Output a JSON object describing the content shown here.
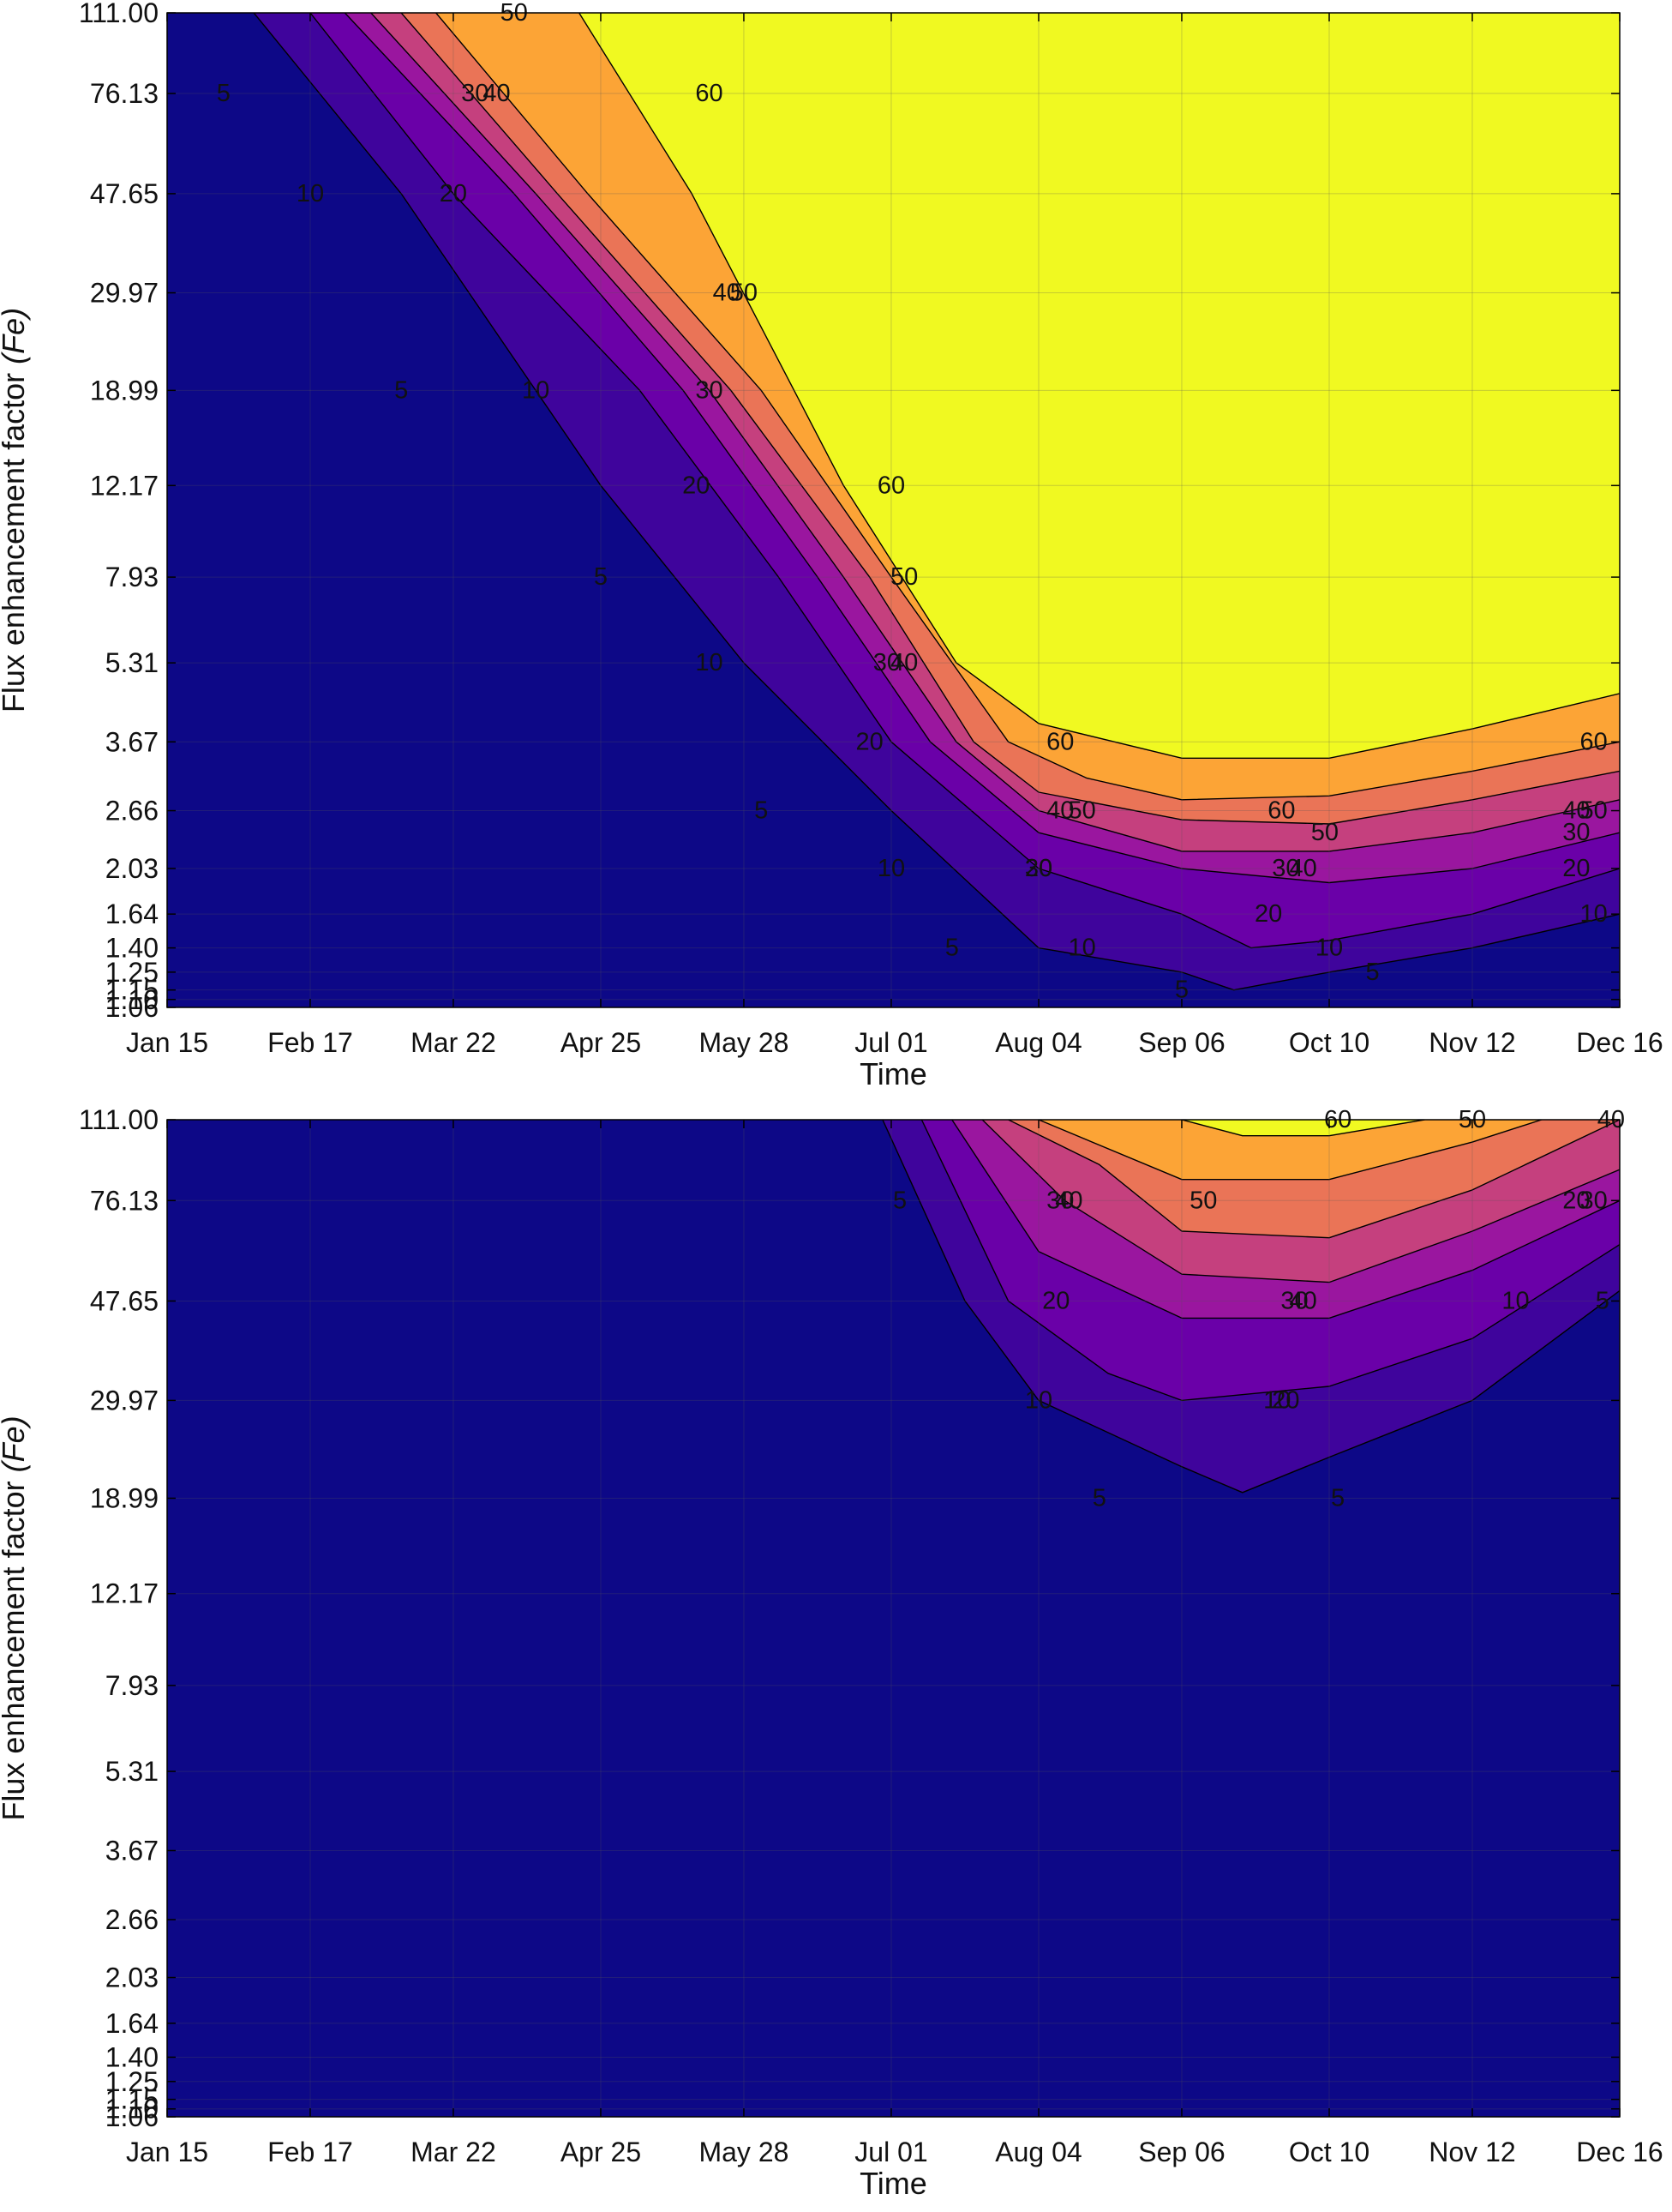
{
  "chart_data": [
    {
      "type": "contour",
      "title": "",
      "xlabel": "Time",
      "ylabel": "Flux enhancement factor",
      "ylabel_symbol": "(Fe)",
      "x_ticks": [
        "Jan 15",
        "Feb 17",
        "Mar 22",
        "Apr 25",
        "May 28",
        "Jul 01",
        "Aug 04",
        "Sep 06",
        "Oct 10",
        "Nov 12",
        "Dec 16"
      ],
      "y_ticks": [
        "1.06",
        "1.10",
        "1.15",
        "1.25",
        "1.40",
        "1.64",
        "2.03",
        "2.66",
        "3.67",
        "5.31",
        "7.93",
        "12.17",
        "18.99",
        "29.97",
        "47.65",
        "76.13",
        "111.00"
      ],
      "y_scale": "categorical-log",
      "levels": [
        5,
        10,
        20,
        30,
        40,
        50,
        60
      ],
      "colors": [
        "#0d0887",
        "#3f049c",
        "#6a00a8",
        "#9a169f",
        "#c5407e",
        "#ea7457",
        "#fca436",
        "#f0f921"
      ],
      "grid": true,
      "contours": [
        {
          "level": 5,
          "points": [
            [
              "Feb 04",
              "111.00"
            ],
            [
              "Mar 10",
              "47.65"
            ],
            [
              "Apr 25",
              "12.17"
            ],
            [
              "May 28",
              "5.31"
            ],
            [
              "Jul 01",
              "2.66"
            ],
            [
              "Aug 04",
              "1.40"
            ],
            [
              "Sep 06",
              "1.25"
            ],
            [
              "Sep 18",
              "1.15"
            ],
            [
              "Oct 10",
              "1.25"
            ],
            [
              "Nov 12",
              "1.40"
            ],
            [
              "Dec 16",
              "1.64"
            ]
          ]
        },
        {
          "level": 10,
          "points": [
            [
              "Feb 17",
              "111.00"
            ],
            [
              "Mar 22",
              "47.65"
            ],
            [
              "May 04",
              "18.99"
            ],
            [
              "Jun 05",
              "7.93"
            ],
            [
              "Jul 01",
              "3.67"
            ],
            [
              "Aug 04",
              "2.03"
            ],
            [
              "Sep 06",
              "1.64"
            ],
            [
              "Sep 22",
              "1.40"
            ],
            [
              "Oct 10",
              "1.45"
            ],
            [
              "Nov 12",
              "1.64"
            ],
            [
              "Dec 16",
              "2.03"
            ]
          ]
        },
        {
          "level": 20,
          "points": [
            [
              "Feb 25",
              "111.00"
            ],
            [
              "Apr 05",
              "47.65"
            ],
            [
              "May 14",
              "18.99"
            ],
            [
              "Jun 14",
              "7.93"
            ],
            [
              "Jul 10",
              "3.67"
            ],
            [
              "Aug 04",
              "2.40"
            ],
            [
              "Sep 06",
              "2.03"
            ],
            [
              "Oct 10",
              "1.90"
            ],
            [
              "Nov 12",
              "2.03"
            ],
            [
              "Dec 16",
              "2.40"
            ]
          ]
        },
        {
          "level": 30,
          "points": [
            [
              "Mar 03",
              "111.00"
            ],
            [
              "Apr 10",
              "47.65"
            ],
            [
              "May 20",
              "18.99"
            ],
            [
              "Jun 20",
              "7.93"
            ],
            [
              "Jul 16",
              "3.67"
            ],
            [
              "Aug 04",
              "2.66"
            ],
            [
              "Sep 06",
              "2.20"
            ],
            [
              "Oct 10",
              "2.20"
            ],
            [
              "Nov 12",
              "2.40"
            ],
            [
              "Dec 16",
              "2.80"
            ]
          ]
        },
        {
          "level": 40,
          "points": [
            [
              "Mar 10",
              "111.00"
            ],
            [
              "Apr 15",
              "47.65"
            ],
            [
              "May 25",
              "18.99"
            ],
            [
              "Jun 26",
              "7.93"
            ],
            [
              "Jul 20",
              "3.67"
            ],
            [
              "Aug 04",
              "2.90"
            ],
            [
              "Sep 06",
              "2.55"
            ],
            [
              "Oct 10",
              "2.50"
            ],
            [
              "Nov 12",
              "2.80"
            ],
            [
              "Dec 16",
              "3.20"
            ]
          ]
        },
        {
          "level": 50,
          "points": [
            [
              "Mar 18",
              "111.00"
            ],
            [
              "Apr 22",
              "47.65"
            ],
            [
              "Jun 01",
              "18.99"
            ],
            [
              "Jul 01",
              "7.93"
            ],
            [
              "Jul 28",
              "3.67"
            ],
            [
              "Aug 15",
              "3.10"
            ],
            [
              "Sep 06",
              "2.80"
            ],
            [
              "Oct 10",
              "2.85"
            ],
            [
              "Nov 12",
              "3.20"
            ],
            [
              "Dec 16",
              "3.67"
            ]
          ]
        },
        {
          "level": 60,
          "points": [
            [
              "Apr 20",
              "111.00"
            ],
            [
              "May 16",
              "47.65"
            ],
            [
              "Jun 20",
              "12.17"
            ],
            [
              "Jul 16",
              "5.31"
            ],
            [
              "Aug 04",
              "4.00"
            ],
            [
              "Sep 06",
              "3.40"
            ],
            [
              "Oct 10",
              "3.40"
            ],
            [
              "Nov 12",
              "3.90"
            ],
            [
              "Dec 16",
              "4.60"
            ]
          ]
        }
      ],
      "contour_labels": [
        {
          "text": "5",
          "x": "Jan 28",
          "y": "76.13"
        },
        {
          "text": "5",
          "x": "Mar 10",
          "y": "18.99"
        },
        {
          "text": "5",
          "x": "Apr 25",
          "y": "7.93"
        },
        {
          "text": "5",
          "x": "Jun 01",
          "y": "2.66"
        },
        {
          "text": "5",
          "x": "Jul 15",
          "y": "1.40"
        },
        {
          "text": "5",
          "x": "Sep 06",
          "y": "1.15"
        },
        {
          "text": "5",
          "x": "Oct 20",
          "y": "1.25"
        },
        {
          "text": "10",
          "x": "Feb 17",
          "y": "47.65"
        },
        {
          "text": "10",
          "x": "Apr 10",
          "y": "18.99"
        },
        {
          "text": "10",
          "x": "May 20",
          "y": "5.31"
        },
        {
          "text": "10",
          "x": "Jul 01",
          "y": "2.03"
        },
        {
          "text": "10",
          "x": "Aug 14",
          "y": "1.40"
        },
        {
          "text": "10",
          "x": "Oct 10",
          "y": "1.40"
        },
        {
          "text": "10",
          "x": "Dec 10",
          "y": "1.64"
        },
        {
          "text": "20",
          "x": "Mar 22",
          "y": "47.65"
        },
        {
          "text": "20",
          "x": "May 17",
          "y": "12.17"
        },
        {
          "text": "20",
          "x": "Jun 26",
          "y": "3.67"
        },
        {
          "text": "20",
          "x": "Aug 04",
          "y": "2.03"
        },
        {
          "text": "20",
          "x": "Sep 26",
          "y": "1.64"
        },
        {
          "text": "20",
          "x": "Dec 06",
          "y": "2.03"
        },
        {
          "text": "30",
          "x": "Mar 27",
          "y": "76.13"
        },
        {
          "text": "30",
          "x": "May 20",
          "y": "18.99"
        },
        {
          "text": "30",
          "x": "Jun 30",
          "y": "5.31"
        },
        {
          "text": "30",
          "x": "Aug 04",
          "y": "2.03"
        },
        {
          "text": "30",
          "x": "Sep 30",
          "y": "2.03"
        },
        {
          "text": "30",
          "x": "Dec 06",
          "y": "2.40"
        },
        {
          "text": "40",
          "x": "Apr 01",
          "y": "76.13"
        },
        {
          "text": "40",
          "x": "May 24",
          "y": "29.97"
        },
        {
          "text": "40",
          "x": "Jul 04",
          "y": "5.31"
        },
        {
          "text": "40",
          "x": "Aug 09",
          "y": "2.66"
        },
        {
          "text": "40",
          "x": "Oct 04",
          "y": "2.03"
        },
        {
          "text": "40",
          "x": "Dec 06",
          "y": "2.66"
        },
        {
          "text": "50",
          "x": "Apr 05",
          "y": "111.00"
        },
        {
          "text": "50",
          "x": "May 28",
          "y": "29.97"
        },
        {
          "text": "50",
          "x": "Jul 04",
          "y": "7.93"
        },
        {
          "text": "50",
          "x": "Aug 14",
          "y": "2.66"
        },
        {
          "text": "50",
          "x": "Oct 09",
          "y": "2.40"
        },
        {
          "text": "50",
          "x": "Dec 10",
          "y": "2.66"
        },
        {
          "text": "60",
          "x": "May 20",
          "y": "76.13"
        },
        {
          "text": "60",
          "x": "Jul 01",
          "y": "12.17"
        },
        {
          "text": "60",
          "x": "Aug 09",
          "y": "3.67"
        },
        {
          "text": "60",
          "x": "Sep 29",
          "y": "2.66"
        },
        {
          "text": "60",
          "x": "Dec 10",
          "y": "3.67"
        }
      ]
    },
    {
      "type": "contour",
      "title": "",
      "xlabel": "Time",
      "ylabel": "Flux enhancement factor",
      "ylabel_symbol": "(Fe)",
      "x_ticks": [
        "Jan 15",
        "Feb 17",
        "Mar 22",
        "Apr 25",
        "May 28",
        "Jul 01",
        "Aug 04",
        "Sep 06",
        "Oct 10",
        "Nov 12",
        "Dec 16"
      ],
      "y_ticks": [
        "1.06",
        "1.10",
        "1.15",
        "1.25",
        "1.40",
        "1.64",
        "2.03",
        "2.66",
        "3.67",
        "5.31",
        "7.93",
        "12.17",
        "18.99",
        "29.97",
        "47.65",
        "76.13",
        "111.00"
      ],
      "y_scale": "categorical-log",
      "levels": [
        5,
        10,
        20,
        30,
        40,
        50,
        60
      ],
      "colors": [
        "#0d0887",
        "#3f049c",
        "#6a00a8",
        "#9a169f",
        "#c5407e",
        "#ea7457",
        "#fca436",
        "#f0f921"
      ],
      "grid": true,
      "contours": [
        {
          "level": 5,
          "points": [
            [
              "Jun 29",
              "111.00"
            ],
            [
              "Jul 18",
              "47.65"
            ],
            [
              "Aug 04",
              "29.97"
            ],
            [
              "Sep 06",
              "22.00"
            ],
            [
              "Sep 20",
              "19.50"
            ],
            [
              "Oct 10",
              "23.00"
            ],
            [
              "Nov 12",
              "29.97"
            ],
            [
              "Dec 16",
              "50.00"
            ]
          ]
        },
        {
          "level": 10,
          "points": [
            [
              "Jul 08",
              "111.00"
            ],
            [
              "Jul 28",
              "47.65"
            ],
            [
              "Aug 20",
              "34.00"
            ],
            [
              "Sep 06",
              "29.97"
            ],
            [
              "Oct 10",
              "32.00"
            ],
            [
              "Nov 12",
              "40.00"
            ],
            [
              "Dec 16",
              "62.00"
            ]
          ]
        },
        {
          "level": 20,
          "points": [
            [
              "Jul 15",
              "111.00"
            ],
            [
              "Aug 04",
              "60.00"
            ],
            [
              "Sep 06",
              "44.00"
            ],
            [
              "Oct 10",
              "44.00"
            ],
            [
              "Nov 12",
              "55.00"
            ],
            [
              "Dec 16",
              "76.13"
            ]
          ]
        },
        {
          "level": 30,
          "points": [
            [
              "Jul 22",
              "111.00"
            ],
            [
              "Aug 10",
              "76.13"
            ],
            [
              "Sep 06",
              "54.00"
            ],
            [
              "Oct 10",
              "52.00"
            ],
            [
              "Nov 12",
              "66.00"
            ],
            [
              "Dec 16",
              "88.00"
            ]
          ]
        },
        {
          "level": 40,
          "points": [
            [
              "Jul 28",
              "111.00"
            ],
            [
              "Aug 18",
              "90.00"
            ],
            [
              "Sep 06",
              "66.00"
            ],
            [
              "Oct 10",
              "64.00"
            ],
            [
              "Nov 12",
              "80.00"
            ],
            [
              "Dec 16",
              "111.00"
            ]
          ]
        },
        {
          "level": 50,
          "points": [
            [
              "Aug 04",
              "111.00"
            ],
            [
              "Sep 06",
              "84.00"
            ],
            [
              "Oct 10",
              "84.00"
            ],
            [
              "Nov 12",
              "100.00"
            ],
            [
              "Nov 28",
              "111.00"
            ]
          ]
        },
        {
          "level": 60,
          "points": [
            [
              "Sep 06",
              "111.00"
            ],
            [
              "Sep 20",
              "103.00"
            ],
            [
              "Oct 10",
              "103.00"
            ],
            [
              "Nov 01",
              "111.00"
            ]
          ]
        }
      ],
      "contour_labels": [
        {
          "text": "5",
          "x": "Jul 03",
          "y": "76.13"
        },
        {
          "text": "5",
          "x": "Aug 18",
          "y": "18.99"
        },
        {
          "text": "5",
          "x": "Oct 12",
          "y": "18.99"
        },
        {
          "text": "5",
          "x": "Dec 12",
          "y": "47.65"
        },
        {
          "text": "10",
          "x": "Aug 04",
          "y": "29.97"
        },
        {
          "text": "10",
          "x": "Sep 28",
          "y": "29.97"
        },
        {
          "text": "10",
          "x": "Nov 22",
          "y": "47.65"
        },
        {
          "text": "20",
          "x": "Aug 08",
          "y": "47.65"
        },
        {
          "text": "20",
          "x": "Sep 30",
          "y": "29.97"
        },
        {
          "text": "20",
          "x": "Dec 06",
          "y": "76.13"
        },
        {
          "text": "30",
          "x": "Aug 09",
          "y": "76.13"
        },
        {
          "text": "30",
          "x": "Oct 02",
          "y": "47.65"
        },
        {
          "text": "30",
          "x": "Dec 10",
          "y": "76.13"
        },
        {
          "text": "40",
          "x": "Aug 11",
          "y": "76.13"
        },
        {
          "text": "40",
          "x": "Oct 04",
          "y": "47.65"
        },
        {
          "text": "40",
          "x": "Dec 14",
          "y": "111.00"
        },
        {
          "text": "50",
          "x": "Sep 11",
          "y": "76.13"
        },
        {
          "text": "50",
          "x": "Nov 12",
          "y": "111.00"
        },
        {
          "text": "60",
          "x": "Oct 12",
          "y": "111.00"
        }
      ]
    }
  ]
}
